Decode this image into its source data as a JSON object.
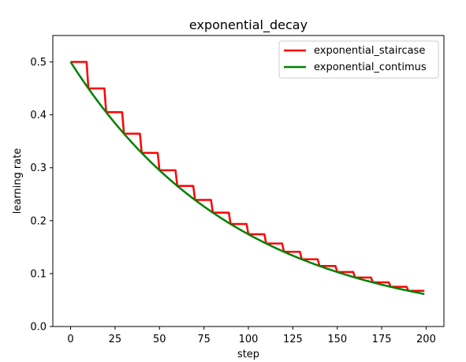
{
  "chart_data": {
    "type": "line",
    "title": "exponential_decay",
    "xlabel": "step",
    "ylabel": "learning rate",
    "xlim": [
      -10,
      210
    ],
    "ylim": [
      0,
      0.55
    ],
    "xticks": [
      0,
      25,
      50,
      75,
      100,
      125,
      150,
      175,
      200
    ],
    "xtick_labels": [
      "0",
      "25",
      "50",
      "75",
      "100",
      "125",
      "150",
      "175",
      "200"
    ],
    "yticks": [
      0.0,
      0.1,
      0.2,
      0.3,
      0.4,
      0.5
    ],
    "ytick_labels": [
      "0.0",
      "0.1",
      "0.2",
      "0.3",
      "0.4",
      "0.5"
    ],
    "grid": false,
    "legend_position": "top-right",
    "initial_learning_rate": 0.5,
    "decay_rate": 0.9,
    "decay_steps": 10,
    "series": [
      {
        "name": "exponential_staircase",
        "color": "#ff0000",
        "step_start": 0,
        "step_end": 199,
        "staircase": true
      },
      {
        "name": "exponential_contimus",
        "color": "#008000",
        "step_start": 0,
        "step_end": 199,
        "staircase": false
      }
    ]
  }
}
